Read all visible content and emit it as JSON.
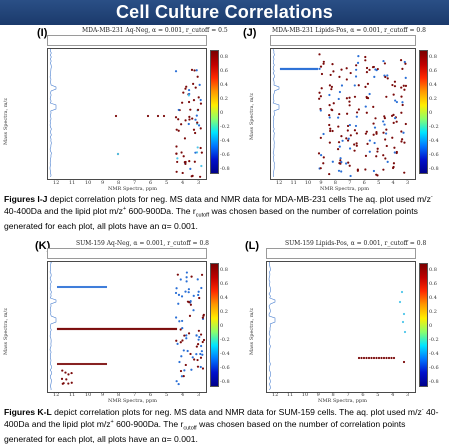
{
  "header": {
    "title": "Cell Culture Correlations"
  },
  "panels": [
    {
      "id": "I",
      "label": "(I)",
      "title": "MDA-MB-231 Aq-Neg, α = 0.001, r_cutoff = 0.5",
      "xlabel": "NMR Spectra, ppm",
      "ylabel": "Mass Spectra, m/z",
      "xticks": [
        "12",
        "11",
        "10",
        "9",
        "8",
        "7",
        "6",
        "5",
        "4",
        "3"
      ],
      "yticks": [
        "400",
        "350",
        "300",
        "250",
        "200",
        "150",
        "100",
        "50"
      ],
      "cticks": [
        "0.8",
        "0.6",
        "0.4",
        "0.2",
        "0",
        "-0.2",
        "-0.4",
        "-0.6",
        "-0.8"
      ]
    },
    {
      "id": "J",
      "label": "(J)",
      "title": "MDA-MB-231 Lipids-Pos, α = 0.001, r_cutoff = 0.8",
      "xlabel": "NMR Spectra, ppm",
      "ylabel": "Mass Spectra, m/z",
      "xticks": [
        "12",
        "11",
        "10",
        "9",
        "8",
        "7",
        "6",
        "5",
        "4",
        "3"
      ],
      "yticks": [
        "850",
        "800",
        "750",
        "700",
        "650",
        "600"
      ],
      "cticks": [
        "0.8",
        "0.6",
        "0.4",
        "0.2",
        "0",
        "-0.2",
        "-0.4",
        "-0.6",
        "-0.8"
      ]
    },
    {
      "id": "K",
      "label": "(K)",
      "title": "SUM-159 Aq-Neg, α = 0.001, r_cutoff = 0.8",
      "xlabel": "NMR Spectra, ppm",
      "ylabel": "Mass Spectra, m/z",
      "xticks": [
        "12",
        "11",
        "10",
        "9",
        "8",
        "7",
        "6",
        "5",
        "4",
        "3"
      ],
      "yticks": [
        "400",
        "350",
        "300",
        "250",
        "200",
        "150",
        "100",
        "50"
      ],
      "cticks": [
        "0.8",
        "0.6",
        "0.4",
        "0.2",
        "0",
        "-0.2",
        "-0.4",
        "-0.6",
        "-0.8"
      ]
    },
    {
      "id": "L",
      "label": "(L)",
      "title": "SUM-159 Lipids-Pos, α = 0.001, r_cutoff = 0.8",
      "xlabel": "NMR Spectra, ppm",
      "ylabel": "Mass Spectra, m/z",
      "xticks": [
        "12",
        "11",
        "10",
        "9",
        "8",
        "7",
        "6",
        "5",
        "4",
        "3"
      ],
      "yticks": [
        "850",
        "800",
        "750",
        "700",
        "650",
        "600"
      ],
      "cticks": [
        "0.8",
        "0.6",
        "0.4",
        "0.2",
        "0",
        "-0.2",
        "-0.4",
        "-0.6",
        "-0.8"
      ]
    }
  ],
  "caption1": {
    "lead": "Figures I-J",
    "p1": " depict correlation plots for neg. MS data and NMR data for MDA-MB-231 cells The aq. plot used m/z",
    "s1": "-",
    "p2": " 40-400Da and the lipid plot m/z",
    "s2": "+",
    "p3": " 600-900Da. The r",
    "s3": "cutoff",
    "p4": " was chosen based on the number of correlation points generated for each plot, all plots have an α= 0.001."
  },
  "caption2": {
    "lead": "Figures K-L",
    "p1": " depict correlation plots for neg. MS data and NMR data for SUM-159 cells. The aq. plot used m/z",
    "s1": "-",
    "p2": " 40-400Da and the lipid plot m/z",
    "s2": "+",
    "p3": " 600-900Da. The r",
    "s3": "cutoff",
    "p4": " was chosen based on the number of correlation points generated for each plot, all plots have an α= 0.001."
  },
  "colors": {
    "banner": "#1f4276",
    "pos": "#7a0a0a",
    "neg": "#2a6fd6",
    "mid": "#4fc6ea"
  }
}
